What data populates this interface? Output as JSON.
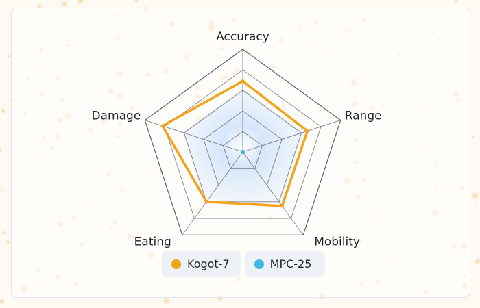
{
  "colors": {
    "series_1": "#f5a21b",
    "series_2": "#3fb8e6",
    "grid": "#55595f",
    "fill_inner": "#bcd8fb"
  },
  "chart_data": {
    "type": "radar",
    "title": "",
    "axes": [
      "Accuracy",
      "Range",
      "Mobility",
      "Eating",
      "Damage"
    ],
    "range": [
      0,
      100
    ],
    "rings": 5,
    "legend_position": "bottom-center",
    "series": [
      {
        "name": "Kogot-7",
        "values": [
          69,
          66,
          65,
          60,
          82
        ]
      },
      {
        "name": "MPC-25",
        "values": [
          0,
          0,
          0,
          0,
          0
        ]
      }
    ]
  },
  "legend": {
    "items": [
      {
        "label": "Kogot-7"
      },
      {
        "label": "MPC-25"
      }
    ]
  }
}
